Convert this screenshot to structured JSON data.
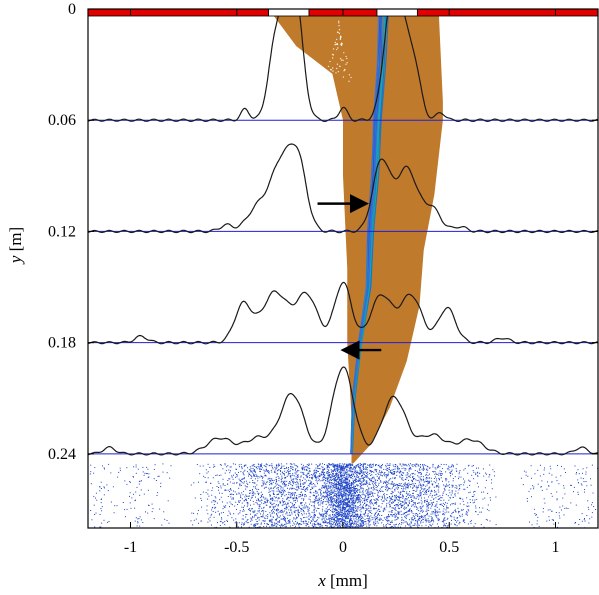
{
  "chart_data": {
    "type": "line",
    "xlabel_var": "x",
    "xlabel_unit": " [mm]",
    "ylabel_var": "y",
    "ylabel_unit": " [m]",
    "xlim": [
      -1.2,
      1.2
    ],
    "ylim": [
      0,
      0.28
    ],
    "y_inverted": true,
    "xticks": [
      -1,
      -0.5,
      0,
      0.5,
      1
    ],
    "xtick_labels": [
      "-1",
      "-0.5",
      "0",
      "0.5",
      "1"
    ],
    "yticks": [
      0,
      0.06,
      0.12,
      0.18,
      0.24
    ],
    "ytick_labels": [
      "0",
      "0.06",
      "0.12",
      "0.18",
      "0.24"
    ],
    "grid": false,
    "colors": {
      "profile": "#1a1a1a",
      "baseline": "#1f1fd6",
      "envelope": "#c07a2c",
      "trajectories": "#1f5fd6",
      "scatter": "#1f45c8",
      "mask_red": "#e00000",
      "arrow": "#000000"
    },
    "mask_bar": {
      "segments": [
        {
          "x0": -1.2,
          "x1": -0.35,
          "open": false
        },
        {
          "x0": -0.35,
          "x1": -0.16,
          "open": true
        },
        {
          "x0": -0.16,
          "x1": 0.16,
          "open": false
        },
        {
          "x0": 0.16,
          "x1": 0.35,
          "open": true
        },
        {
          "x0": 0.35,
          "x1": 1.2,
          "open": false
        }
      ]
    },
    "profile_baselines": [
      0.06,
      0.12,
      0.18,
      0.24
    ],
    "profile_scale_mm": 0.085,
    "profiles": [
      {
        "name": "y=0.06",
        "baseline": 0.06,
        "peaks": [
          {
            "x": -0.27,
            "h": 0.65,
            "w": 0.045
          },
          {
            "x": -0.22,
            "h": 0.5,
            "w": 0.035
          },
          {
            "x": -0.33,
            "h": 0.22,
            "w": 0.03
          },
          {
            "x": -0.46,
            "h": 0.07,
            "w": 0.02
          },
          {
            "x": 0.0,
            "h": 0.08,
            "w": 0.02
          },
          {
            "x": 0.27,
            "h": 0.6,
            "w": 0.045
          },
          {
            "x": 0.22,
            "h": 0.45,
            "w": 0.035
          },
          {
            "x": 0.34,
            "h": 0.22,
            "w": 0.03
          },
          {
            "x": 0.46,
            "h": 0.05,
            "w": 0.02
          }
        ]
      },
      {
        "name": "y=0.12",
        "baseline": 0.12,
        "peaks": [
          {
            "x": -0.29,
            "h": 0.42,
            "w": 0.05
          },
          {
            "x": -0.21,
            "h": 0.4,
            "w": 0.04
          },
          {
            "x": -0.4,
            "h": 0.15,
            "w": 0.05
          },
          {
            "x": -0.55,
            "h": 0.04,
            "w": 0.03
          },
          {
            "x": 0.18,
            "h": 0.44,
            "w": 0.04
          },
          {
            "x": 0.3,
            "h": 0.4,
            "w": 0.05
          },
          {
            "x": 0.42,
            "h": 0.14,
            "w": 0.04
          },
          {
            "x": 0.55,
            "h": 0.03,
            "w": 0.03
          }
        ]
      },
      {
        "name": "y=0.18",
        "baseline": 0.18,
        "peaks": [
          {
            "x": -0.47,
            "h": 0.24,
            "w": 0.04
          },
          {
            "x": -0.32,
            "h": 0.32,
            "w": 0.06
          },
          {
            "x": -0.17,
            "h": 0.3,
            "w": 0.05
          },
          {
            "x": 0.0,
            "h": 0.38,
            "w": 0.04
          },
          {
            "x": 0.18,
            "h": 0.3,
            "w": 0.05
          },
          {
            "x": 0.32,
            "h": 0.3,
            "w": 0.05
          },
          {
            "x": 0.49,
            "h": 0.22,
            "w": 0.04
          },
          {
            "x": -0.95,
            "h": 0.04,
            "w": 0.03
          },
          {
            "x": 0.75,
            "h": 0.03,
            "w": 0.03
          }
        ]
      },
      {
        "name": "y=0.24",
        "baseline": 0.24,
        "peaks": [
          {
            "x": -0.58,
            "h": 0.1,
            "w": 0.06
          },
          {
            "x": -0.4,
            "h": 0.1,
            "w": 0.06
          },
          {
            "x": -0.24,
            "h": 0.38,
            "w": 0.055
          },
          {
            "x": 0.0,
            "h": 0.55,
            "w": 0.05
          },
          {
            "x": 0.24,
            "h": 0.36,
            "w": 0.055
          },
          {
            "x": 0.42,
            "h": 0.12,
            "w": 0.06
          },
          {
            "x": 0.6,
            "h": 0.09,
            "w": 0.06
          },
          {
            "x": -1.1,
            "h": 0.04,
            "w": 0.03
          },
          {
            "x": 1.12,
            "h": 0.04,
            "w": 0.03
          }
        ]
      }
    ],
    "envelope_left": [
      [
        -0.35,
        0.0
      ],
      [
        -0.22,
        0.02
      ],
      [
        -0.05,
        0.035
      ],
      [
        0.0,
        0.06
      ],
      [
        0.0,
        0.09
      ],
      [
        0.02,
        0.14
      ],
      [
        0.02,
        0.18
      ],
      [
        0.04,
        0.22
      ],
      [
        0.04,
        0.245
      ]
    ],
    "envelope_right": [
      [
        0.45,
        0.0
      ],
      [
        0.47,
        0.05
      ],
      [
        0.47,
        0.06
      ],
      [
        0.43,
        0.1
      ],
      [
        0.38,
        0.13
      ],
      [
        0.36,
        0.16
      ],
      [
        0.3,
        0.19
      ],
      [
        0.22,
        0.215
      ],
      [
        0.13,
        0.235
      ],
      [
        0.05,
        0.245
      ]
    ],
    "trajectory_center": [
      [
        0.19,
        0.0
      ],
      [
        0.18,
        0.03
      ],
      [
        0.16,
        0.06
      ],
      [
        0.15,
        0.09
      ],
      [
        0.13,
        0.12
      ],
      [
        0.12,
        0.15
      ],
      [
        0.08,
        0.18
      ],
      [
        0.05,
        0.21
      ],
      [
        0.04,
        0.24
      ]
    ],
    "arrows": [
      {
        "from": [
          -0.12,
          0.105
        ],
        "to": [
          0.1,
          0.105
        ]
      },
      {
        "from": [
          0.18,
          0.184
        ],
        "to": [
          0.01,
          0.184
        ]
      }
    ],
    "scatter_bands": {
      "y_range": [
        0.245,
        0.283
      ],
      "clusters": [
        {
          "x": -0.28,
          "sd": 0.18,
          "n": 1400
        },
        {
          "x": 0.0,
          "sd": 0.05,
          "n": 1300
        },
        {
          "x": 0.28,
          "sd": 0.18,
          "n": 1400
        },
        {
          "x": 0.0,
          "sd": 0.35,
          "n": 1300
        },
        {
          "x": -0.95,
          "sd": 0.06,
          "n": 90
        },
        {
          "x": 0.98,
          "sd": 0.06,
          "n": 90
        },
        {
          "x": -1.15,
          "sd": 0.04,
          "n": 60
        },
        {
          "x": 1.15,
          "sd": 0.04,
          "n": 60
        }
      ]
    }
  }
}
